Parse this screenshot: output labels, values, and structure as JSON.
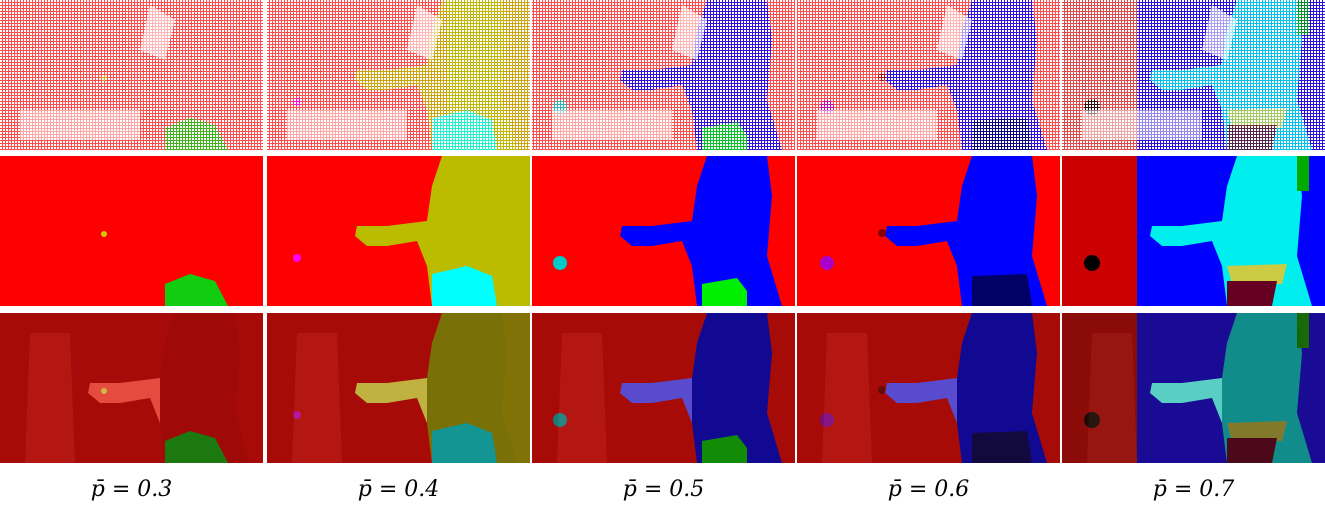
{
  "figure": {
    "captions": [
      "p̄ = 0.3",
      "p̄ = 0.4",
      "p̄ = 0.5",
      "p̄ = 0.6",
      "p̄ = 0.7"
    ]
  }
}
